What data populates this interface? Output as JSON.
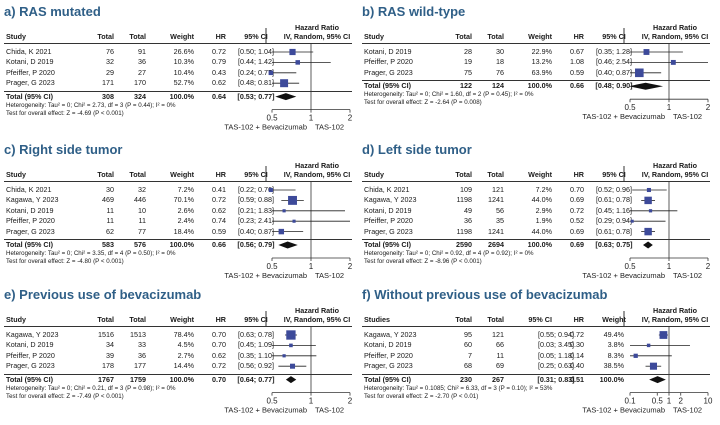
{
  "panels": [
    {
      "id": "a",
      "title": "a) RAS mutated",
      "headers": {
        "study": "Study",
        "total1": "Total",
        "total2": "Total",
        "weight": "Weight",
        "hr": "HR",
        "ci": "95% CI",
        "plot_title1": "Hazard Ratio",
        "plot_title2": "IV, Random, 95% CI"
      },
      "rows": [
        {
          "study": "Chida, K 2021",
          "n1": "76",
          "n2": "91",
          "weight": "26.6%",
          "hr": "0.72",
          "ci": "[0.50; 1.04]",
          "est": 0.72,
          "lo": 0.5,
          "hi": 1.04,
          "w": 26.6
        },
        {
          "study": "Kotani, D 2019",
          "n1": "32",
          "n2": "36",
          "weight": "10.3%",
          "hr": "0.79",
          "ci": "[0.44; 1.42]",
          "est": 0.79,
          "lo": 0.44,
          "hi": 1.42,
          "w": 10.3
        },
        {
          "study": "Pfeiffer, P 2020",
          "n1": "29",
          "n2": "27",
          "weight": "10.4%",
          "hr": "0.43",
          "ci": "[0.24; 0.77]",
          "est": 0.43,
          "lo": 0.24,
          "hi": 0.77,
          "w": 10.4
        },
        {
          "study": "Prager, G 2023",
          "n1": "171",
          "n2": "170",
          "weight": "52.7%",
          "hr": "0.62",
          "ci": "[0.48; 0.81]",
          "est": 0.62,
          "lo": 0.48,
          "hi": 0.81,
          "w": 52.7
        }
      ],
      "total": {
        "label": "Total (95% CI)",
        "n1": "308",
        "n2": "324",
        "weight": "100.0%",
        "hr": "0.64",
        "ci": "[0.53; 0.77]",
        "est": 0.64,
        "lo": 0.53,
        "hi": 0.77
      },
      "heterogeneity": "Heterogeneity: Tau² = 0; Chi² = 2.73, df = 3 (P = 0.44); I² = 0%",
      "overall": "Test for overall effect: Z = -4.69 (P < 0.001)",
      "axis": {
        "min": 0.5,
        "max": 2,
        "ticks": [
          {
            "v": 0.5,
            "label": "0.5"
          },
          {
            "v": 1,
            "label": "1"
          },
          {
            "v": 2,
            "label": "2"
          }
        ]
      },
      "left_label": "TAS-102 + Bevacizumab",
      "right_label": "TAS-102"
    },
    {
      "id": "b",
      "title": "b) RAS wild-type",
      "headers": {
        "study": "Study",
        "total1": "Total",
        "total2": "Total",
        "weight": "Weight",
        "hr": "HR",
        "ci": "95% CI",
        "plot_title1": "Hazard Ratio",
        "plot_title2": "IV, Random, 95% CI"
      },
      "rows": [
        {
          "study": "Kotani, D 2019",
          "n1": "28",
          "n2": "30",
          "weight": "22.9%",
          "hr": "0.67",
          "ci": "[0.35; 1.28]",
          "est": 0.67,
          "lo": 0.35,
          "hi": 1.28,
          "w": 22.9
        },
        {
          "study": "Pfeiffer, P 2020",
          "n1": "19",
          "n2": "18",
          "weight": "13.2%",
          "hr": "1.08",
          "ci": "[0.46; 2.54]",
          "est": 1.08,
          "lo": 0.46,
          "hi": 2.54,
          "w": 13.2
        },
        {
          "study": "Prager, G 2023",
          "n1": "75",
          "n2": "76",
          "weight": "63.9%",
          "hr": "0.59",
          "ci": "[0.40; 0.87]",
          "est": 0.59,
          "lo": 0.4,
          "hi": 0.87,
          "w": 63.9
        }
      ],
      "total": {
        "label": "Total (95% CI)",
        "n1": "122",
        "n2": "124",
        "weight": "100.0%",
        "hr": "0.66",
        "ci": "[0.48; 0.90]",
        "est": 0.66,
        "lo": 0.48,
        "hi": 0.9
      },
      "heterogeneity": "Heterogeneity: Tau² = 0; Chi² = 1.60, df = 2 (P = 0.45); I² = 0%",
      "overall": "Test for overall effect: Z = -2.64 (P = 0.008)",
      "axis": {
        "min": 0.5,
        "max": 2,
        "ticks": [
          {
            "v": 0.5,
            "label": "0.5"
          },
          {
            "v": 1,
            "label": "1"
          },
          {
            "v": 2,
            "label": "2"
          }
        ]
      },
      "left_label": "TAS-102 + Bevacizumab",
      "right_label": "TAS-102"
    },
    {
      "id": "c",
      "title": "c) Right side tumor",
      "headers": {
        "study": "Study",
        "total1": "Total",
        "total2": "Total",
        "weight": "Weight",
        "hr": "HR",
        "ci": "95% CI",
        "plot_title1": "Hazard Ratio",
        "plot_title2": "IV, Random, 95% CI"
      },
      "rows": [
        {
          "study": "Chida, K 2021",
          "n1": "30",
          "n2": "32",
          "weight": "7.2%",
          "hr": "0.41",
          "ci": "[0.22; 0.76]",
          "est": 0.41,
          "lo": 0.22,
          "hi": 0.76,
          "w": 7.2
        },
        {
          "study": "Kagawa, Y 2023",
          "n1": "469",
          "n2": "446",
          "weight": "70.1%",
          "hr": "0.72",
          "ci": "[0.59; 0.88]",
          "est": 0.72,
          "lo": 0.59,
          "hi": 0.88,
          "w": 70.1
        },
        {
          "study": "Kotani, D 2019",
          "n1": "11",
          "n2": "10",
          "weight": "2.6%",
          "hr": "0.62",
          "ci": "[0.21; 1.83]",
          "est": 0.62,
          "lo": 0.21,
          "hi": 1.83,
          "w": 2.6
        },
        {
          "study": "Pfeiffer, P 2020",
          "n1": "11",
          "n2": "11",
          "weight": "2.4%",
          "hr": "0.74",
          "ci": "[0.23; 2.41]",
          "est": 0.74,
          "lo": 0.23,
          "hi": 2.41,
          "w": 2.4
        },
        {
          "study": "Prager, G 2023",
          "n1": "62",
          "n2": "77",
          "weight": "18.4%",
          "hr": "0.59",
          "ci": "[0.40; 0.87]",
          "est": 0.59,
          "lo": 0.4,
          "hi": 0.87,
          "w": 18.4
        }
      ],
      "total": {
        "label": "Total (95% CI)",
        "n1": "583",
        "n2": "576",
        "weight": "100.0%",
        "hr": "0.66",
        "ci": "[0.56; 0.79]",
        "est": 0.66,
        "lo": 0.56,
        "hi": 0.79
      },
      "heterogeneity": "Heterogeneity: Tau² = 0; Chi² = 3.35, df = 4 (P = 0.50); I² = 0%",
      "overall": "Test for overall effect: Z = -4.80 (P < 0.001)",
      "axis": {
        "min": 0.5,
        "max": 2,
        "ticks": [
          {
            "v": 0.5,
            "label": "0.5"
          },
          {
            "v": 1,
            "label": "1"
          },
          {
            "v": 2,
            "label": "2"
          }
        ]
      },
      "left_label": "TAS-102 + Bevacizumab",
      "right_label": "TAS-102"
    },
    {
      "id": "d",
      "title": "d) Left side tumor",
      "headers": {
        "study": "Study",
        "total1": "Total",
        "total2": "Total",
        "weight": "Weight",
        "hr": "HR",
        "ci": "95% CI",
        "plot_title1": "Hazard Ratio",
        "plot_title2": "IV, Random, 95% CI"
      },
      "rows": [
        {
          "study": "Chida, K 2021",
          "n1": "109",
          "n2": "121",
          "weight": "7.2%",
          "hr": "0.70",
          "ci": "[0.52; 0.96]",
          "est": 0.7,
          "lo": 0.52,
          "hi": 0.96,
          "w": 7.2
        },
        {
          "study": "Kagawa, Y 2023",
          "n1": "1198",
          "n2": "1241",
          "weight": "44.0%",
          "hr": "0.69",
          "ci": "[0.61; 0.78]",
          "est": 0.69,
          "lo": 0.61,
          "hi": 0.78,
          "w": 44.0
        },
        {
          "study": "Kotani, D 2019",
          "n1": "49",
          "n2": "56",
          "weight": "2.9%",
          "hr": "0.72",
          "ci": "[0.45; 1.16]",
          "est": 0.72,
          "lo": 0.45,
          "hi": 1.16,
          "w": 2.9
        },
        {
          "study": "Pfeiffer, P 2020",
          "n1": "36",
          "n2": "35",
          "weight": "1.9%",
          "hr": "0.52",
          "ci": "[0.29; 0.94]",
          "est": 0.52,
          "lo": 0.29,
          "hi": 0.94,
          "w": 1.9
        },
        {
          "study": "Prager, G 2023",
          "n1": "1198",
          "n2": "1241",
          "weight": "44.0%",
          "hr": "0.69",
          "ci": "[0.61; 0.78]",
          "est": 0.69,
          "lo": 0.61,
          "hi": 0.78,
          "w": 44.0
        }
      ],
      "total": {
        "label": "Total (95% CI)",
        "n1": "2590",
        "n2": "2694",
        "weight": "100.0%",
        "hr": "0.69",
        "ci": "[0.63; 0.75]",
        "est": 0.69,
        "lo": 0.63,
        "hi": 0.75
      },
      "heterogeneity": "Heterogeneity: Tau² = 0; Chi² = 0.92, df = 4 (P = 0.92); I² = 0%",
      "overall": "Test for overall effect: Z = -8.96 (P < 0.001)",
      "axis": {
        "min": 0.5,
        "max": 2,
        "ticks": [
          {
            "v": 0.5,
            "label": "0.5"
          },
          {
            "v": 1,
            "label": "1"
          },
          {
            "v": 2,
            "label": "2"
          }
        ]
      },
      "left_label": "TAS-102 + Bevacizumab",
      "right_label": "TAS-102"
    },
    {
      "id": "e",
      "title": "e) Previous use of bevacizumab",
      "headers": {
        "study": "Study",
        "total1": "Total",
        "total2": "Total",
        "weight": "Weight",
        "hr": "HR",
        "ci": "95% CI",
        "plot_title1": "Hazard Ratio",
        "plot_title2": "IV, Random, 95% CI"
      },
      "rows": [
        {
          "study": "Kagawa, Y 2023",
          "n1": "1516",
          "n2": "1513",
          "weight": "78.4%",
          "hr": "0.70",
          "ci": "[0.63; 0.78]",
          "est": 0.7,
          "lo": 0.63,
          "hi": 0.78,
          "w": 78.4
        },
        {
          "study": "Kotani, D 2019",
          "n1": "34",
          "n2": "33",
          "weight": "4.5%",
          "hr": "0.70",
          "ci": "[0.45; 1.09]",
          "est": 0.7,
          "lo": 0.45,
          "hi": 1.09,
          "w": 4.5
        },
        {
          "study": "Pfeiffer, P 2020",
          "n1": "39",
          "n2": "36",
          "weight": "2.7%",
          "hr": "0.62",
          "ci": "[0.35; 1.10]",
          "est": 0.62,
          "lo": 0.35,
          "hi": 1.1,
          "w": 2.7
        },
        {
          "study": "Prager, G 2023",
          "n1": "178",
          "n2": "177",
          "weight": "14.4%",
          "hr": "0.72",
          "ci": "[0.56; 0.92]",
          "est": 0.72,
          "lo": 0.56,
          "hi": 0.92,
          "w": 14.4
        }
      ],
      "total": {
        "label": "Total (95% CI)",
        "n1": "1767",
        "n2": "1759",
        "weight": "100.0%",
        "hr": "0.70",
        "ci": "[0.64; 0.77]",
        "est": 0.7,
        "lo": 0.64,
        "hi": 0.77
      },
      "heterogeneity": "Heterogeneity: Tau² = 0; Chi² = 0.21, df = 3 (P = 0.98); I² = 0%",
      "overall": "Test for overall effect: Z = -7.49 (P < 0.001)",
      "axis": {
        "min": 0.5,
        "max": 2,
        "ticks": [
          {
            "v": 0.5,
            "label": "0.5"
          },
          {
            "v": 1,
            "label": "1"
          },
          {
            "v": 2,
            "label": "2"
          }
        ]
      },
      "left_label": "TAS-102 + Bevacizumab",
      "right_label": "TAS-102"
    },
    {
      "id": "f",
      "title": "f) Without previous use of bevacizumab",
      "headers": {
        "study": "Studies",
        "total1": "Total",
        "total2": "Total",
        "weight": "95% CI",
        "hr": "HR",
        "ci": "Weight",
        "plot_title1": "Hazard Ratio",
        "plot_title2": "IV, Random, 95% CI"
      },
      "swap_ci_weight": true,
      "rows": [
        {
          "study": "Kagawa, Y 2023",
          "n1": "95",
          "n2": "121",
          "weight": "49.4%",
          "hr": "0.72",
          "ci": "[0.55; 0.94]",
          "est": 0.72,
          "lo": 0.55,
          "hi": 0.94,
          "w": 49.4
        },
        {
          "study": "Kotani, D 2019",
          "n1": "60",
          "n2": "66",
          "weight": "3.8%",
          "hr": "0.30",
          "ci": "[0.03; 3.45]",
          "est": 0.3,
          "lo": 0.03,
          "hi": 3.45,
          "w": 3.8
        },
        {
          "study": "Pfeiffer, P 2020",
          "n1": "7",
          "n2": "11",
          "weight": "8.3%",
          "hr": "0.14",
          "ci": "[0.05; 1.18]",
          "est": 0.14,
          "lo": 0.05,
          "hi": 1.18,
          "w": 8.3
        },
        {
          "study": "Prager, G 2023",
          "n1": "68",
          "n2": "69",
          "weight": "38.5%",
          "hr": "0.40",
          "ci": "[0.25; 0.63]",
          "est": 0.4,
          "lo": 0.25,
          "hi": 0.63,
          "w": 38.5
        }
      ],
      "total": {
        "label": "Total (95% CI)",
        "n1": "230",
        "n2": "267",
        "weight": "100.0%",
        "hr": "0.51",
        "ci": "[0.31; 0.83]",
        "est": 0.51,
        "lo": 0.31,
        "hi": 0.83
      },
      "heterogeneity": "Heterogeneity: Tau² = 0.1085; Chi² = 6.33, df = 3 (P = 0.10); I² = 53%",
      "overall": "Test for overall effect: Z = -2.70 (P < 0.01)",
      "axis": {
        "min": 0.1,
        "max": 10,
        "ticks": [
          {
            "v": 0.1,
            "label": "0.1"
          },
          {
            "v": 0.5,
            "label": "0.5"
          },
          {
            "v": 1,
            "label": "1"
          },
          {
            "v": 2,
            "label": "2"
          },
          {
            "v": 10,
            "label": "10"
          }
        ]
      },
      "left_label": "TAS-102 + Bevacizumab",
      "right_label": "TAS-102"
    }
  ],
  "colors": {
    "title": "#2f5f87",
    "marker": "#3d4a9a",
    "diamond": "#111111"
  }
}
